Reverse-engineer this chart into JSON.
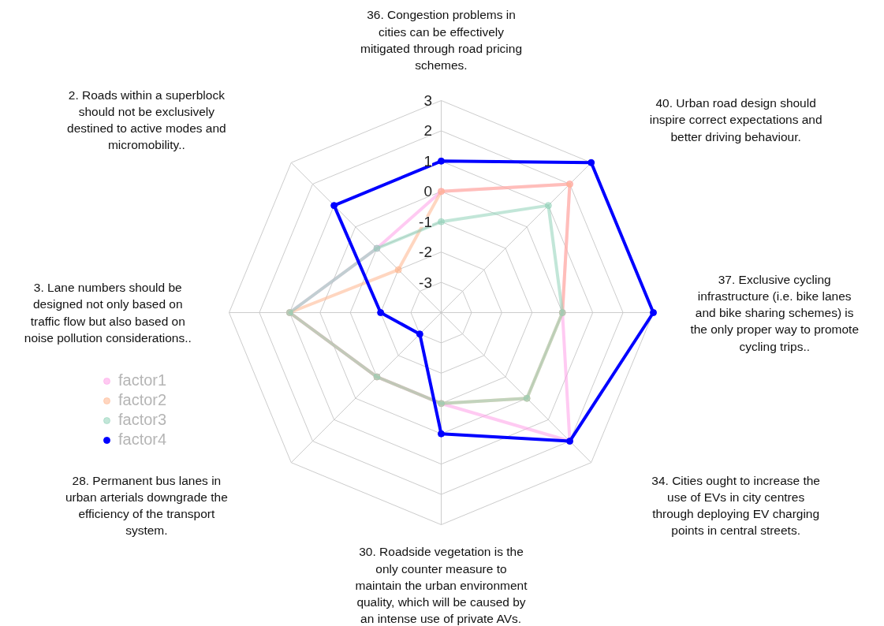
{
  "chart_data": {
    "type": "radar",
    "categories": [
      "36. Congestion problems in\ncities can be effectively\nmitigated through road pricing\nschemes.",
      "40. Urban road design should\ninspire correct expectations and\nbetter driving behaviour.",
      "37. Exclusive cycling\ninfrastructure (i.e. bike lanes\nand bike sharing schemes) is\nthe only proper way to promote\ncycling trips..",
      "34. Cities ought to increase the\nuse of EVs in city centres\nthrough deploying EV charging\npoints in central streets.",
      "30. Roadside vegetation is the\nonly counter measure to\nmaintain the urban environment\nquality, which will be caused by\nan intense use of private AVs.",
      "28. Permanent bus lanes in\nurban arterials downgrade the\nefficiency of the transport\nsystem.",
      "3. Lane numbers should be\ndesigned not only based on\ntraffic flow but also based on\nnoise pollution considerations..",
      "2. Roads within a superblock\nshould not be exclusively\ndestined to active modes and\nmicromobility.."
    ],
    "ylim": [
      -4,
      3
    ],
    "yticks": [
      -3,
      -2,
      -1,
      0,
      1,
      2,
      3
    ],
    "grid": true,
    "legend": "left",
    "marker": "circle",
    "series": [
      {
        "name": "factor1",
        "color": "#ff9ee8",
        "values": [
          0,
          2,
          0,
          2,
          -1,
          -1,
          1,
          -1
        ]
      },
      {
        "name": "factor2",
        "color": "#ffb48c",
        "values": [
          0,
          2,
          0,
          0,
          -1,
          -1,
          1,
          -2
        ]
      },
      {
        "name": "factor3",
        "color": "#8fd1b8",
        "values": [
          -1,
          1,
          0,
          0,
          -1,
          -1,
          1,
          -1
        ]
      },
      {
        "name": "factor4",
        "color": "#0000ff",
        "values": [
          1,
          3,
          3,
          2,
          0,
          -3,
          -2,
          1
        ]
      }
    ]
  }
}
